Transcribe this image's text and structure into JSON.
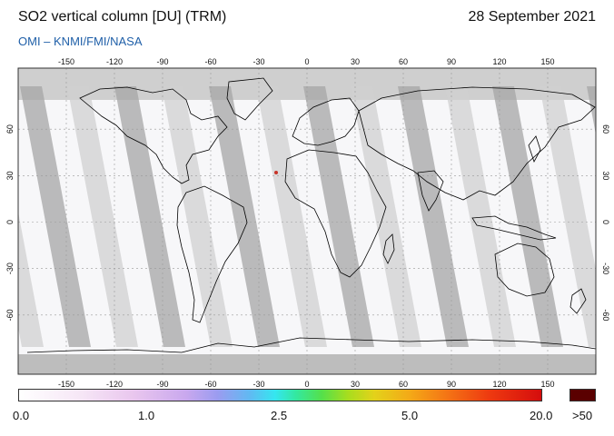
{
  "header": {
    "title": "SO2 vertical column [DU] (TRM)",
    "date": "28 September 2021",
    "credit": "OMI  –  KNMI/FMI/NASA"
  },
  "map": {
    "lon_ticks": [
      "-150",
      "-120",
      "-90",
      "-60",
      "-30",
      "0",
      "30",
      "60",
      "90",
      "120",
      "150"
    ],
    "lat_ticks": [
      "60",
      "30",
      "0",
      "-30",
      "-60"
    ],
    "colors": {
      "orbit_gap": "#d0d0d0",
      "orbit_overlap": "#a6a6a6",
      "coast": "#000000",
      "grid": "#999999"
    }
  },
  "colorbar": {
    "labels": [
      "0.0",
      "1.0",
      "2.5",
      "5.0",
      "20.0",
      ">50"
    ],
    "colors": [
      "#ffffff",
      "#e9c6ee",
      "#9b9cf0",
      "#35e6f0",
      "#55e04a",
      "#e3d21a",
      "#f47415",
      "#d50d0d",
      "#5a0000"
    ]
  }
}
